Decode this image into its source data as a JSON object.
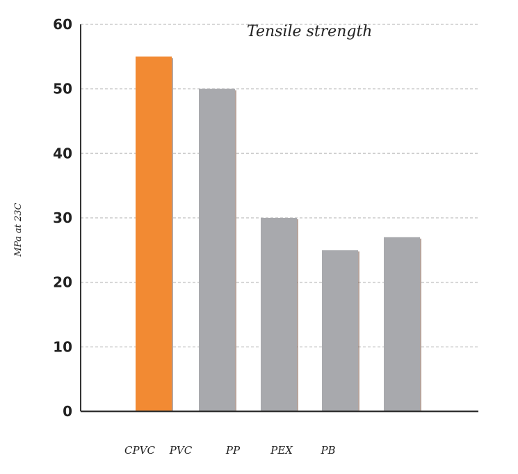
{
  "chart_data": {
    "type": "bar",
    "title": "Tensile strength",
    "ylabel": "MPa at 23C",
    "xlabel": "",
    "categories": [
      "CPVC",
      "PVC",
      "PP",
      "PEX",
      "PB"
    ],
    "bars": [
      {
        "value": 55,
        "color": "#f28a33"
      },
      {
        "value": 50,
        "color": "#a8a9ad"
      },
      {
        "value": 30,
        "color": "#a8a9ad"
      },
      {
        "value": 25,
        "color": "#a8a9ad"
      },
      {
        "value": 27,
        "color": "#a8a9ad"
      }
    ],
    "ylim": [
      0,
      60
    ],
    "yticks": [
      "0",
      "10",
      "20",
      "30",
      "40",
      "50",
      "60"
    ],
    "grid": true,
    "colors": {
      "highlight": "#f28a33",
      "default": "#a8a9ad",
      "axis": "#333333",
      "grid": "#cccccc"
    }
  }
}
